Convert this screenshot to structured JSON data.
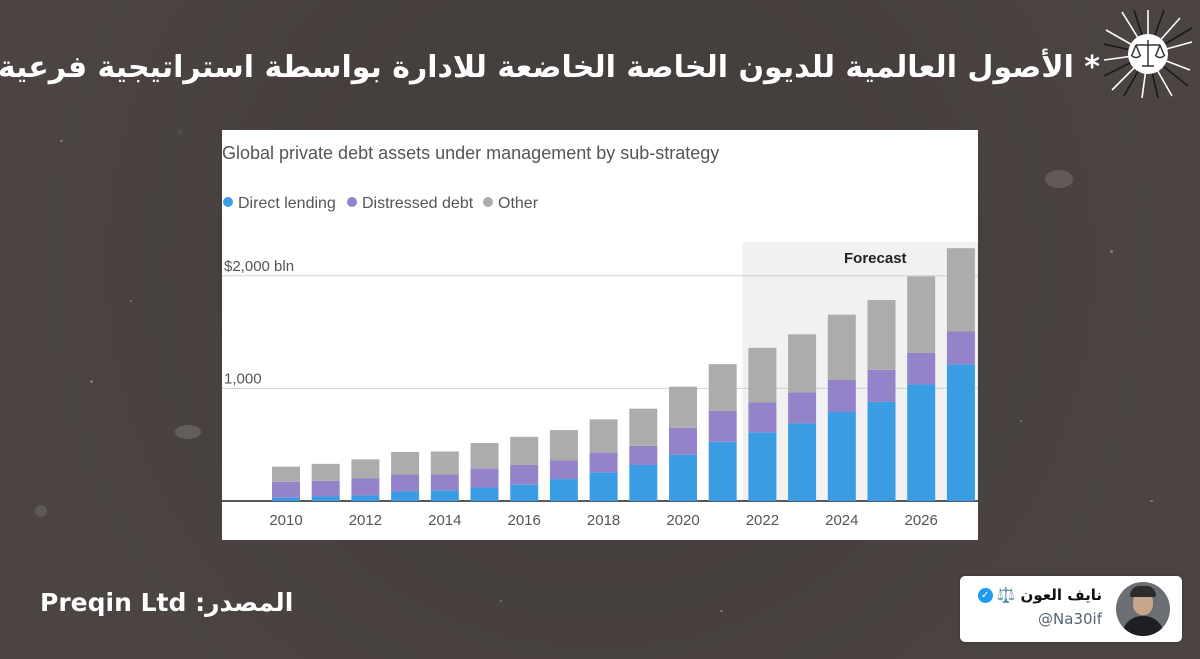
{
  "headline": "* الأصول العالمية للديون الخاصة الخاضعة للادارة بواسطة استراتيجية فرعية.",
  "source": {
    "label": "المصدر:",
    "value": "Preqin Ltd"
  },
  "tweet": {
    "name": "نايف العون ⚖️",
    "handle": "@Na30if"
  },
  "colors": {
    "direct_lending": "#3a9de3",
    "distressed_debt": "#9483c9",
    "other": "#acacac",
    "forecast_bg": "#f1f1f1"
  },
  "chart_data": {
    "type": "bar",
    "stacked": true,
    "title": "Global private debt assets under management by sub-strategy",
    "legend": [
      "Direct lending",
      "Distressed debt",
      "Other"
    ],
    "ytick_labels": [
      "$2,000 bln",
      "1,000"
    ],
    "yticks": [
      2000,
      1000
    ],
    "ylim": [
      0,
      2300
    ],
    "forecast_label": "Forecast",
    "forecast_start": 2022,
    "xtick_labels": [
      "2010",
      "2012",
      "2014",
      "2016",
      "2018",
      "2020",
      "2022",
      "2024",
      "2026"
    ],
    "categories": [
      2010,
      2011,
      2012,
      2013,
      2014,
      2015,
      2016,
      2017,
      2018,
      2019,
      2020,
      2021,
      2022,
      2023,
      2024,
      2025,
      2026,
      2027
    ],
    "series": [
      {
        "name": "Direct lending",
        "values": [
          30,
          40,
          50,
          85,
          95,
          120,
          145,
          195,
          255,
          320,
          410,
          525,
          610,
          690,
          790,
          880,
          1035,
          1215
        ]
      },
      {
        "name": "Distressed debt",
        "values": [
          140,
          140,
          150,
          150,
          140,
          170,
          175,
          165,
          175,
          170,
          240,
          275,
          265,
          275,
          285,
          285,
          280,
          290
        ]
      },
      {
        "name": "Other",
        "values": [
          135,
          150,
          170,
          200,
          205,
          225,
          250,
          270,
          295,
          330,
          365,
          415,
          485,
          515,
          580,
          620,
          680,
          740
        ]
      }
    ]
  }
}
